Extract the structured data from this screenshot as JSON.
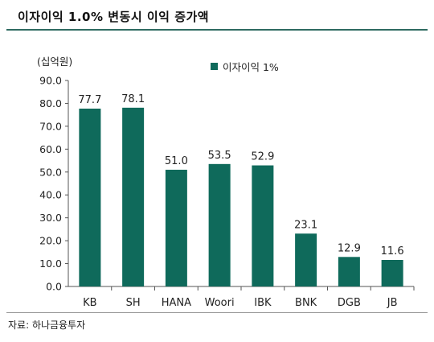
{
  "title": "이자이익 1.0% 변동시 이익 증가액",
  "unit_label": "(십억원)",
  "source": "자료: 하나금융투자",
  "colors": {
    "bar": "#0f6a5b",
    "title_rule": "#2f6b62",
    "axis": "#555555"
  },
  "chart_data": {
    "type": "bar",
    "title": "이자이익 1.0% 변동시 이익 증가액",
    "ylabel": "(십억원)",
    "xlabel": "",
    "categories": [
      "KB",
      "SH",
      "HANA",
      "Woori",
      "IBK",
      "BNK",
      "DGB",
      "JB"
    ],
    "series": [
      {
        "name": "이자이익 1%",
        "values": [
          77.7,
          78.1,
          51.0,
          53.5,
          52.9,
          23.1,
          12.9,
          11.6
        ]
      }
    ],
    "value_labels": [
      "77.7",
      "78.1",
      "51.0",
      "53.5",
      "52.9",
      "23.1",
      "12.9",
      "11.6"
    ],
    "ylim": [
      0,
      90
    ],
    "yticks": [
      "0.0",
      "10.0",
      "20.0",
      "30.0",
      "40.0",
      "50.0",
      "60.0",
      "70.0",
      "80.0",
      "90.0"
    ],
    "grid": false,
    "legend_position": "top"
  }
}
